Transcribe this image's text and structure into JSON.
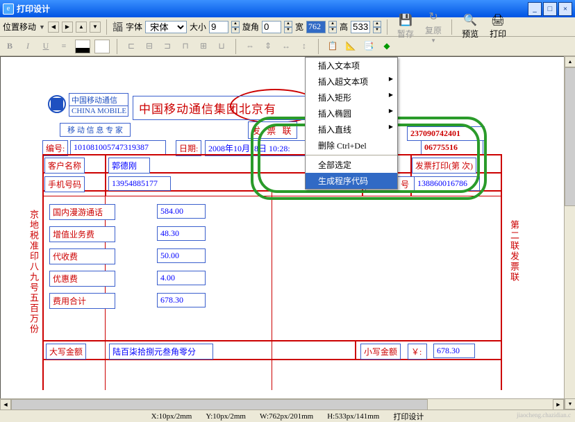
{
  "window": {
    "title": "打印设计"
  },
  "toolbar1": {
    "pos_label": "位置移动",
    "font_label": "字体",
    "font_family": "宋体",
    "size_label": "大小",
    "size_value": "9",
    "angle_label": "旋角",
    "angle_value": "0",
    "width_label": "宽",
    "width_value": "762",
    "height_label": "高",
    "height_value": "533",
    "save": "暂存",
    "restore": "复原",
    "preview": "预览",
    "print": "打印"
  },
  "menu": {
    "items": [
      {
        "t": "插入文本项",
        "sub": false
      },
      {
        "t": "插入超文本项",
        "sub": true
      },
      {
        "t": "插入矩形",
        "sub": true
      },
      {
        "t": "插入椭圆",
        "sub": true
      },
      {
        "t": "插入直线",
        "sub": true
      },
      {
        "t": "删除   Ctrl+Del",
        "sub": false
      }
    ],
    "sep": true,
    "items2": [
      {
        "t": "全部选定",
        "sub": false
      },
      {
        "t": "生成程序代码",
        "sub": false,
        "hl": true
      }
    ]
  },
  "doc": {
    "logo_line1": "中国移动通信",
    "logo_line2": "CHINA MOBILE",
    "subtitle": "移 动 信 息 专 家",
    "big_title": "中国移动通信集团北京有",
    "fapiao_lian": "发 票 联",
    "serial_label": "编号:",
    "serial_value": "101081005747319387",
    "date_label": "日期:",
    "date_value": "2008年10月18日 10:28:",
    "right_num1": "237090742401",
    "right_num2": "06775516",
    "cust_label": "客户名称",
    "cust_name": "郭德刚",
    "phone_label": "手机号码",
    "phone_value": "13954885177",
    "invoice_print": "发票打印(第 次)",
    "contract_label": "合 同 号",
    "contract_value": "138860016786",
    "rows": [
      {
        "label": "国内漫游通话",
        "value": "584.00"
      },
      {
        "label": "增值业务费",
        "value": "48.30"
      },
      {
        "label": "代收费",
        "value": "50.00"
      },
      {
        "label": "优惠费",
        "value": "4.00"
      },
      {
        "label": "费用合计",
        "value": "678.30"
      }
    ],
    "vtext_left": "京地税准印八九号五百万份",
    "vtext_right": "第二联发票联",
    "upper_label": "大写金额",
    "upper_value": "陆百柒拾捌元叁角零分",
    "lower_label": "小写金额",
    "lower_symbol": "￥:",
    "lower_value": "678.30"
  },
  "status": {
    "x": "X:10px/2mm",
    "y": "Y:10px/2mm",
    "w": "W:762px/201mm",
    "h": "H:533px/141mm",
    "title": "打印设计"
  },
  "watermark": {
    "line1": "",
    "line2": "jiaocheng.chazidian.c"
  }
}
